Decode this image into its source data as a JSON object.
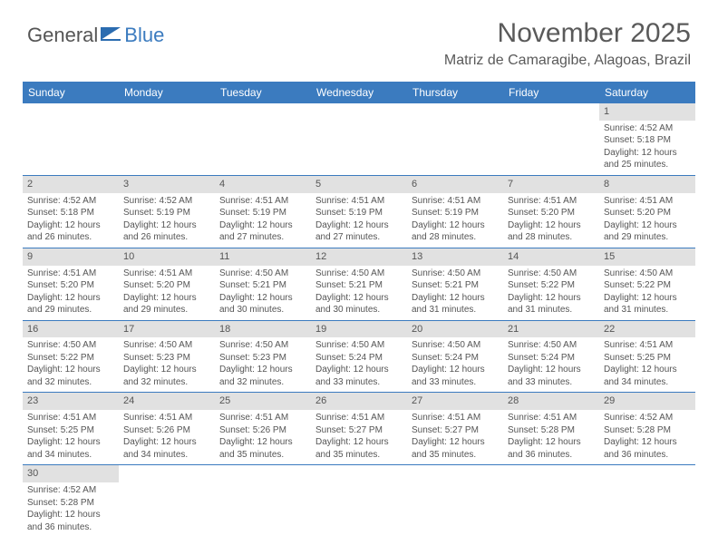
{
  "logo": {
    "text1": "General",
    "text2": "Blue",
    "icon_color": "#2b6cb0"
  },
  "title": "November 2025",
  "location": "Matriz de Camaragibe, Alagoas, Brazil",
  "colors": {
    "header_bg": "#3b7bbf",
    "header_text": "#ffffff",
    "daynum_bg": "#e1e1e1",
    "text": "#555555",
    "rule": "#3b7bbf"
  },
  "columns": [
    "Sunday",
    "Monday",
    "Tuesday",
    "Wednesday",
    "Thursday",
    "Friday",
    "Saturday"
  ],
  "weeks": [
    [
      null,
      null,
      null,
      null,
      null,
      null,
      {
        "d": "1",
        "sr": "4:52 AM",
        "ss": "5:18 PM",
        "dl": "12 hours and 25 minutes."
      }
    ],
    [
      {
        "d": "2",
        "sr": "4:52 AM",
        "ss": "5:18 PM",
        "dl": "12 hours and 26 minutes."
      },
      {
        "d": "3",
        "sr": "4:52 AM",
        "ss": "5:19 PM",
        "dl": "12 hours and 26 minutes."
      },
      {
        "d": "4",
        "sr": "4:51 AM",
        "ss": "5:19 PM",
        "dl": "12 hours and 27 minutes."
      },
      {
        "d": "5",
        "sr": "4:51 AM",
        "ss": "5:19 PM",
        "dl": "12 hours and 27 minutes."
      },
      {
        "d": "6",
        "sr": "4:51 AM",
        "ss": "5:19 PM",
        "dl": "12 hours and 28 minutes."
      },
      {
        "d": "7",
        "sr": "4:51 AM",
        "ss": "5:20 PM",
        "dl": "12 hours and 28 minutes."
      },
      {
        "d": "8",
        "sr": "4:51 AM",
        "ss": "5:20 PM",
        "dl": "12 hours and 29 minutes."
      }
    ],
    [
      {
        "d": "9",
        "sr": "4:51 AM",
        "ss": "5:20 PM",
        "dl": "12 hours and 29 minutes."
      },
      {
        "d": "10",
        "sr": "4:51 AM",
        "ss": "5:20 PM",
        "dl": "12 hours and 29 minutes."
      },
      {
        "d": "11",
        "sr": "4:50 AM",
        "ss": "5:21 PM",
        "dl": "12 hours and 30 minutes."
      },
      {
        "d": "12",
        "sr": "4:50 AM",
        "ss": "5:21 PM",
        "dl": "12 hours and 30 minutes."
      },
      {
        "d": "13",
        "sr": "4:50 AM",
        "ss": "5:21 PM",
        "dl": "12 hours and 31 minutes."
      },
      {
        "d": "14",
        "sr": "4:50 AM",
        "ss": "5:22 PM",
        "dl": "12 hours and 31 minutes."
      },
      {
        "d": "15",
        "sr": "4:50 AM",
        "ss": "5:22 PM",
        "dl": "12 hours and 31 minutes."
      }
    ],
    [
      {
        "d": "16",
        "sr": "4:50 AM",
        "ss": "5:22 PM",
        "dl": "12 hours and 32 minutes."
      },
      {
        "d": "17",
        "sr": "4:50 AM",
        "ss": "5:23 PM",
        "dl": "12 hours and 32 minutes."
      },
      {
        "d": "18",
        "sr": "4:50 AM",
        "ss": "5:23 PM",
        "dl": "12 hours and 32 minutes."
      },
      {
        "d": "19",
        "sr": "4:50 AM",
        "ss": "5:24 PM",
        "dl": "12 hours and 33 minutes."
      },
      {
        "d": "20",
        "sr": "4:50 AM",
        "ss": "5:24 PM",
        "dl": "12 hours and 33 minutes."
      },
      {
        "d": "21",
        "sr": "4:50 AM",
        "ss": "5:24 PM",
        "dl": "12 hours and 33 minutes."
      },
      {
        "d": "22",
        "sr": "4:51 AM",
        "ss": "5:25 PM",
        "dl": "12 hours and 34 minutes."
      }
    ],
    [
      {
        "d": "23",
        "sr": "4:51 AM",
        "ss": "5:25 PM",
        "dl": "12 hours and 34 minutes."
      },
      {
        "d": "24",
        "sr": "4:51 AM",
        "ss": "5:26 PM",
        "dl": "12 hours and 34 minutes."
      },
      {
        "d": "25",
        "sr": "4:51 AM",
        "ss": "5:26 PM",
        "dl": "12 hours and 35 minutes."
      },
      {
        "d": "26",
        "sr": "4:51 AM",
        "ss": "5:27 PM",
        "dl": "12 hours and 35 minutes."
      },
      {
        "d": "27",
        "sr": "4:51 AM",
        "ss": "5:27 PM",
        "dl": "12 hours and 35 minutes."
      },
      {
        "d": "28",
        "sr": "4:51 AM",
        "ss": "5:28 PM",
        "dl": "12 hours and 36 minutes."
      },
      {
        "d": "29",
        "sr": "4:52 AM",
        "ss": "5:28 PM",
        "dl": "12 hours and 36 minutes."
      }
    ],
    [
      {
        "d": "30",
        "sr": "4:52 AM",
        "ss": "5:28 PM",
        "dl": "12 hours and 36 minutes."
      },
      null,
      null,
      null,
      null,
      null,
      null
    ]
  ],
  "labels": {
    "sunrise": "Sunrise:",
    "sunset": "Sunset:",
    "daylight": "Daylight:"
  }
}
